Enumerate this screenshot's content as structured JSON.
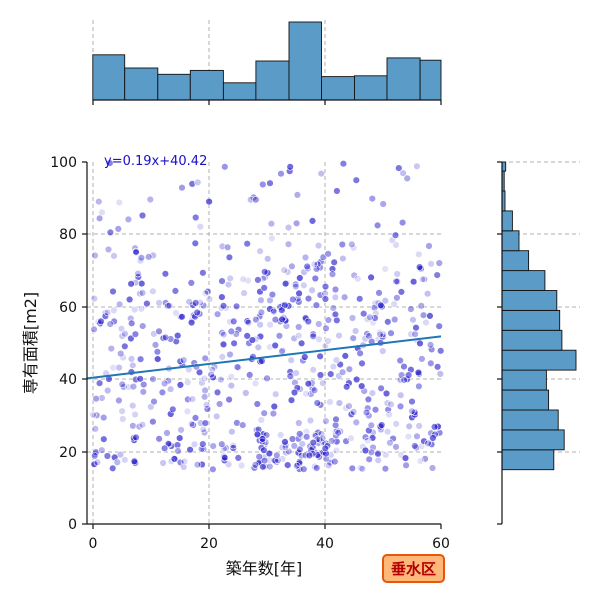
{
  "chart_data": {
    "type": "scatter",
    "subtype": "joint-plot",
    "xlabel": "築年数[年]",
    "ylabel": "専有面積[m2]",
    "xlim": [
      -1,
      60
    ],
    "ylim": [
      0,
      100
    ],
    "xticks": [
      0,
      20,
      40,
      60
    ],
    "yticks": [
      0,
      20,
      40,
      60,
      80,
      100
    ],
    "grid": true,
    "regression": {
      "slope": 0.19,
      "intercept": 40.42,
      "label": "y=0.19x+40.42",
      "color": "#1f77b4"
    },
    "badge": "垂水区",
    "colors": {
      "points": "#1a10c8",
      "bars": "#5a9bc8",
      "badge_bg": "#ffb77a",
      "badge_border": "#e8560a",
      "badge_text": "#b30000"
    },
    "x_histogram": {
      "bin_edges": [
        0,
        5.5,
        11.2,
        16.8,
        22.5,
        28.1,
        33.8,
        39.4,
        45.1,
        50.7,
        56.4,
        60
      ],
      "counts": [
        0.58,
        0.41,
        0.33,
        0.38,
        0.22,
        0.5,
        1.0,
        0.3,
        0.31,
        0.54,
        0.51
      ]
    },
    "y_histogram": {
      "bin_edges": [
        15,
        20.5,
        26,
        31.5,
        37,
        42.5,
        48,
        53.5,
        59,
        64.5,
        70,
        75.5,
        81,
        86.5,
        92,
        97.5,
        100
      ],
      "counts": [
        0.7,
        0.84,
        0.76,
        0.63,
        0.6,
        1.0,
        0.81,
        0.78,
        0.74,
        0.58,
        0.36,
        0.23,
        0.14,
        0.04,
        0.03,
        0.05
      ]
    },
    "scatter_clusters": [
      {
        "x_range": [
          0,
          60
        ],
        "y_range": [
          15,
          30
        ],
        "n": 170
      },
      {
        "x_range": [
          0,
          60
        ],
        "y_range": [
          30,
          45
        ],
        "n": 140
      },
      {
        "x_range": [
          0,
          60
        ],
        "y_range": [
          45,
          62
        ],
        "n": 180
      },
      {
        "x_range": [
          0,
          60
        ],
        "y_range": [
          62,
          78
        ],
        "n": 90
      },
      {
        "x_range": [
          0,
          60
        ],
        "y_range": [
          78,
          100
        ],
        "n": 45
      },
      {
        "x_range": [
          28,
          42
        ],
        "y_range": [
          15,
          25
        ],
        "n": 70
      },
      {
        "x_range": [
          28,
          42
        ],
        "y_range": [
          55,
          72
        ],
        "n": 40
      }
    ]
  }
}
